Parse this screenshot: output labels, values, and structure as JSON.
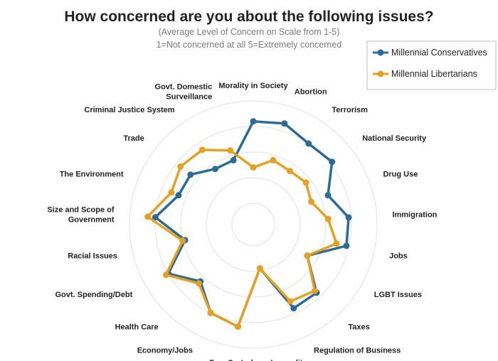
{
  "chart_data": {
    "type": "radar",
    "title": "How concerned are you about the following issues?",
    "subtitle_lines": [
      "(Average Level of Concern on Scale from 1-5)",
      "1=Not concerned at all  5=Extremely concerned"
    ],
    "scale": [
      1,
      5
    ],
    "grid": true,
    "legend_position": "top-right",
    "categories": [
      [
        "Morality in Society"
      ],
      [
        "Abortion"
      ],
      [
        "Terrorism"
      ],
      [
        "National Security"
      ],
      [
        "Drug Use"
      ],
      [
        "Immigration"
      ],
      [
        "Jobs"
      ],
      [
        "LGBT Issues"
      ],
      [
        "Taxes"
      ],
      [
        "Regulation of Business"
      ],
      [
        "Income Inequality"
      ],
      [
        "Free Speech"
      ],
      [
        "Economy/Jobs"
      ],
      [
        "Health Care"
      ],
      [
        "Govt. Spending/Debt"
      ],
      [
        "Racial Issues"
      ],
      [
        "Size and Scope of",
        "Government"
      ],
      [
        "The Environment"
      ],
      [
        "Trade"
      ],
      [
        "Criminal Justice System"
      ],
      [
        "Govt. Domestic",
        "Surveillance"
      ]
    ],
    "series": [
      {
        "name": "Millennial Conservatives",
        "color": "#2e6a96",
        "values": [
          4.2,
          4.3,
          4.0,
          4.1,
          3.3,
          3.9,
          3.9,
          2.6,
          3.8,
          3.8,
          1.9,
          4.2,
          4.0,
          3.2,
          4.0,
          2.9,
          4.0,
          3.3,
          3.3,
          2.8,
          2.8
        ]
      },
      {
        "name": "Millennial Libertarians",
        "color": "#e3a126",
        "values": [
          2.4,
          2.8,
          2.7,
          2.8,
          2.6,
          3.1,
          3.5,
          2.6,
          3.7,
          3.5,
          1.9,
          4.2,
          4.0,
          3.3,
          4.1,
          3.0,
          4.3,
          3.6,
          3.8,
          3.7,
          3.2
        ]
      }
    ]
  }
}
